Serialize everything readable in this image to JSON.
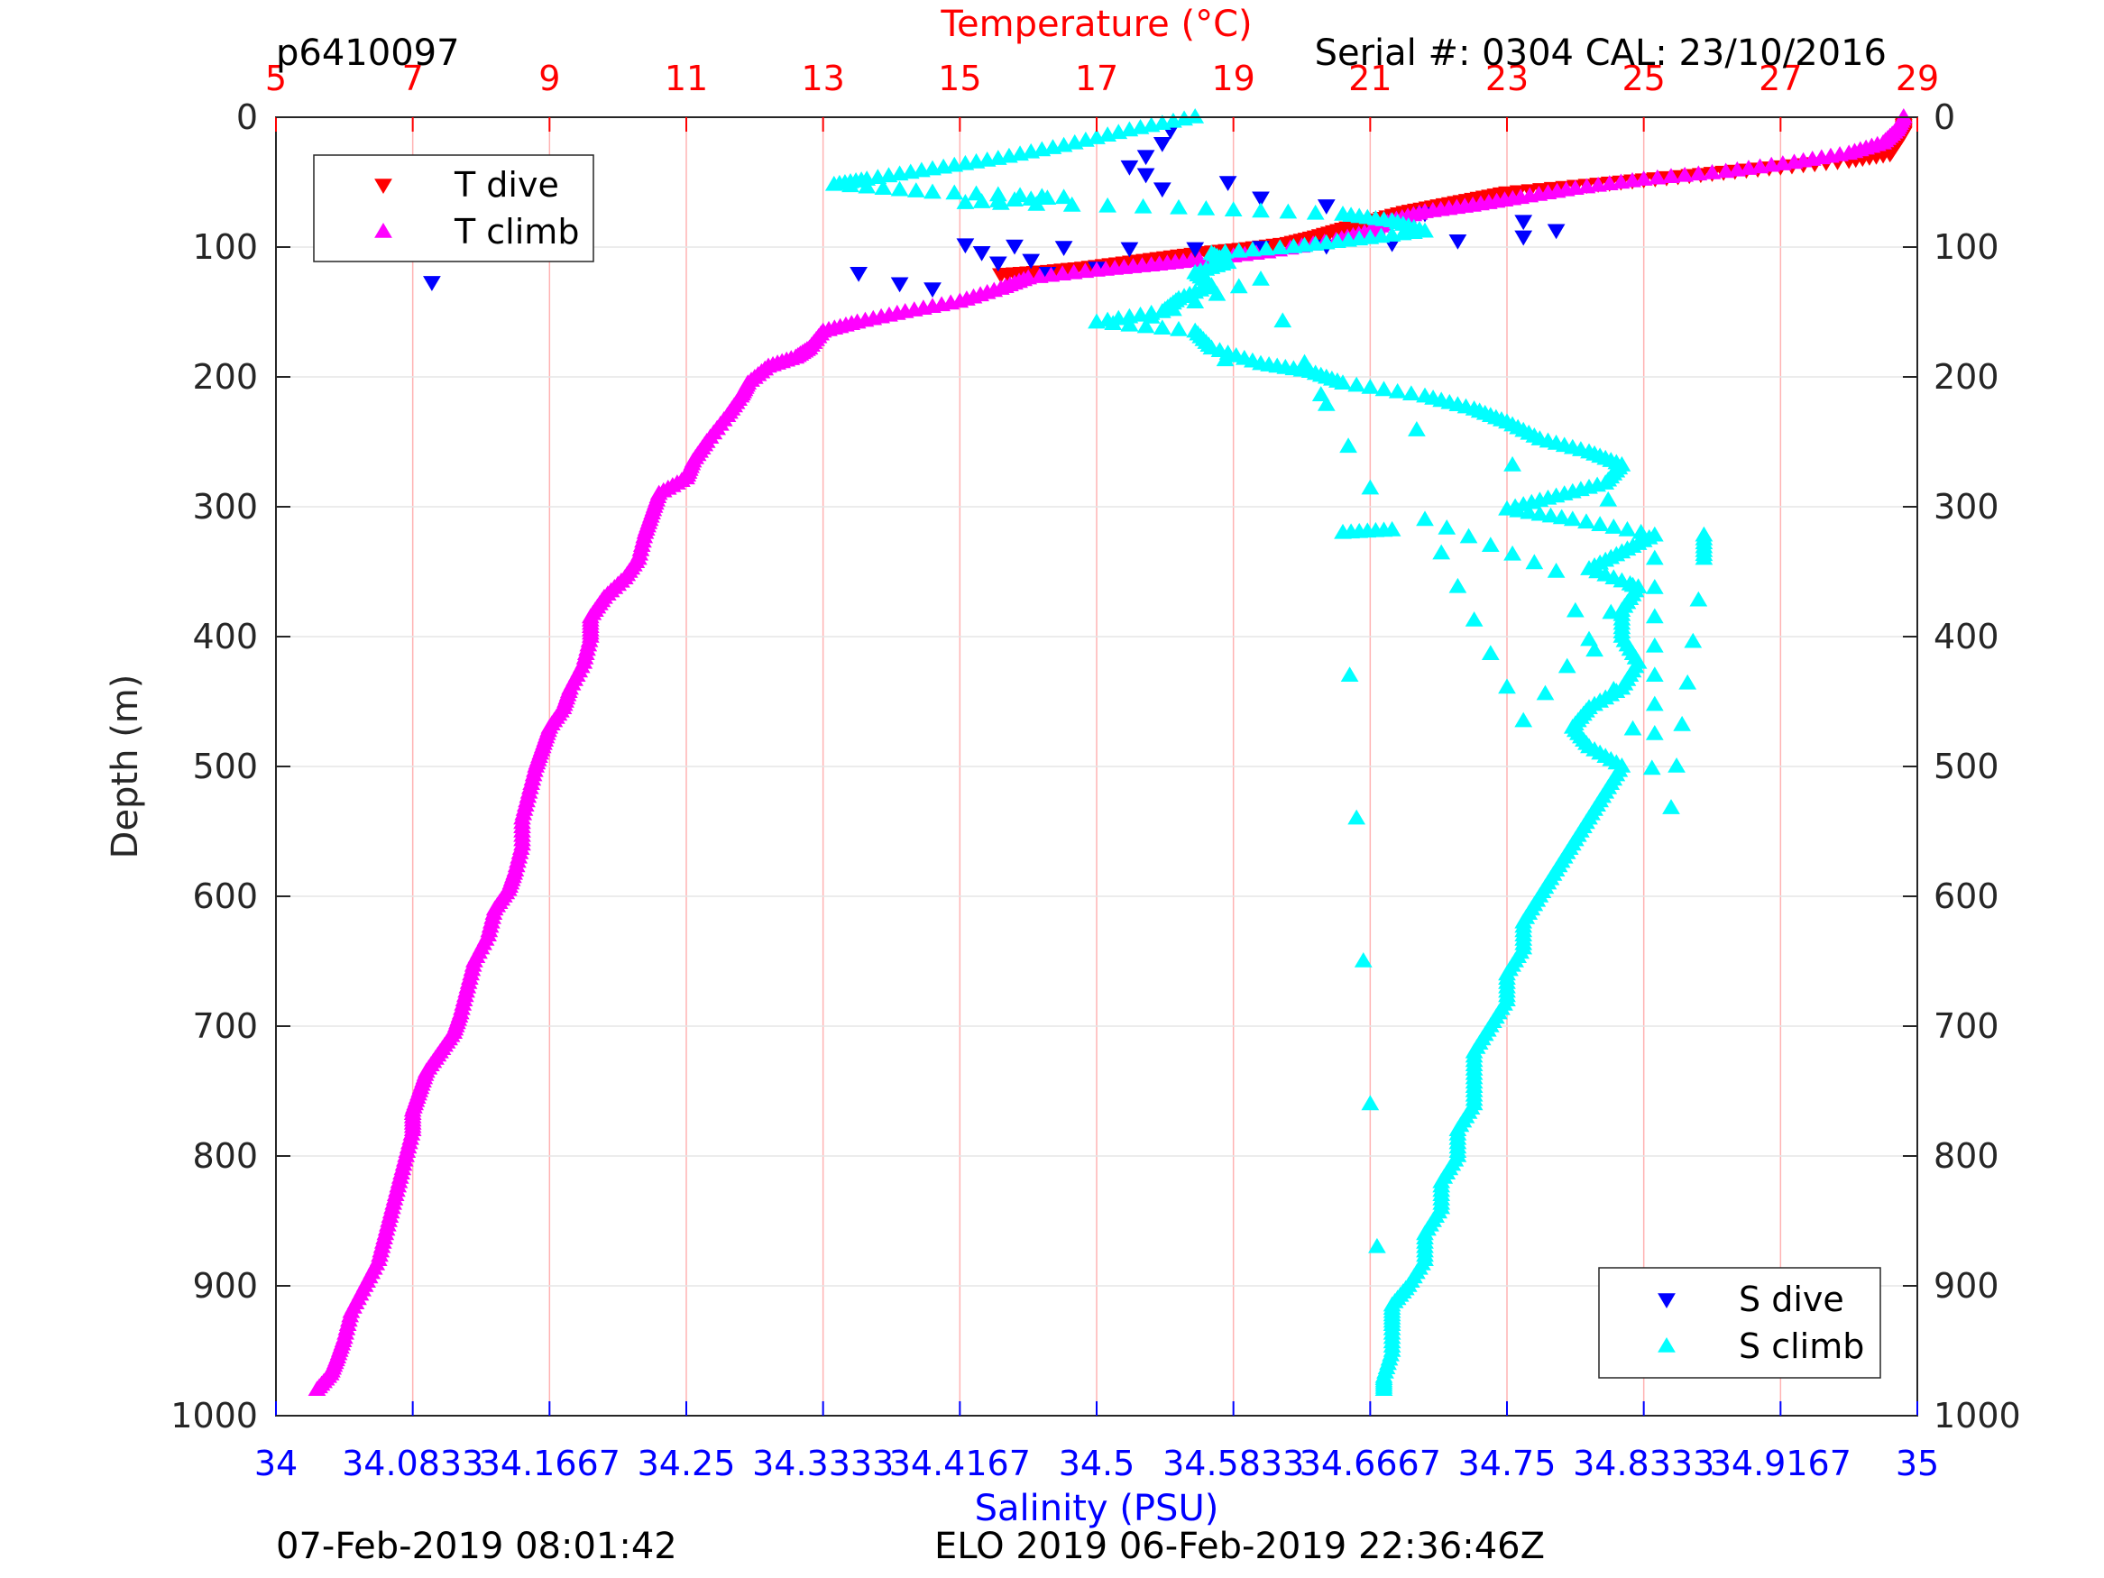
{
  "header": {
    "profile_id": "p6410097",
    "serial": "Serial #: 0304  CAL: 23/10/2016"
  },
  "footer": {
    "left": "07-Feb-2019 08:01:42",
    "center": "ELO 2019 06-Feb-2019 22:36:46Z"
  },
  "chart_data": {
    "type": "scatter",
    "title": "",
    "x_top_label": "Temperature (°C)",
    "x_bottom_label": "Salinity (PSU)",
    "ylabel": "Depth (m)",
    "temperature_range": [
      5,
      29
    ],
    "salinity_range": [
      34,
      35
    ],
    "depth_range": [
      0,
      1000
    ],
    "y_reversed": true,
    "grid": true,
    "temperature_ticks": [
      "5",
      "7",
      "9",
      "11",
      "13",
      "15",
      "17",
      "19",
      "21",
      "23",
      "25",
      "27",
      "29"
    ],
    "salinity_ticks": [
      "34",
      "34.0833",
      "34.1667",
      "34.25",
      "34.3333",
      "34.4167",
      "34.5",
      "34.5833",
      "34.6667",
      "34.75",
      "34.8333",
      "34.9167",
      "35"
    ],
    "depth_ticks": [
      "0",
      "100",
      "200",
      "300",
      "400",
      "500",
      "600",
      "700",
      "800",
      "900",
      "1000"
    ],
    "legend_temperature": {
      "placement": "top-left",
      "entries": [
        "T dive",
        "T climb"
      ]
    },
    "legend_salinity": {
      "placement": "bottom-right",
      "entries": [
        "S dive",
        "S climb"
      ]
    },
    "colors": {
      "t_dive": "#ff0000",
      "t_climb": "#ff00ff",
      "s_dive": "#0000ff",
      "s_climb": "#00ffff",
      "grid": "#ffb3b3",
      "axis": "#262626"
    },
    "series": [
      {
        "name": "T dive",
        "axis": "temperature",
        "marker": "triangle-down",
        "points": [
          [
            28.8,
            5
          ],
          [
            28.8,
            12
          ],
          [
            28.7,
            20
          ],
          [
            28.6,
            28
          ],
          [
            28.0,
            33
          ],
          [
            27.0,
            38
          ],
          [
            26.0,
            43
          ],
          [
            25.0,
            48
          ],
          [
            24.0,
            53
          ],
          [
            23.0,
            58
          ],
          [
            22.5,
            63
          ],
          [
            22.0,
            68
          ],
          [
            21.5,
            73
          ],
          [
            21.0,
            80
          ],
          [
            20.6,
            86
          ],
          [
            20.2,
            92
          ],
          [
            19.8,
            97
          ],
          [
            19.2,
            101
          ],
          [
            18.6,
            104
          ],
          [
            18.0,
            108
          ],
          [
            17.4,
            112
          ],
          [
            16.8,
            116
          ],
          [
            16.2,
            119
          ],
          [
            15.6,
            121
          ]
        ]
      },
      {
        "name": "T climb",
        "axis": "temperature",
        "marker": "triangle-up",
        "points": [
          [
            28.8,
            0
          ],
          [
            28.7,
            10
          ],
          [
            28.5,
            20
          ],
          [
            28.0,
            28
          ],
          [
            27.2,
            35
          ],
          [
            26.2,
            42
          ],
          [
            25.0,
            48
          ],
          [
            24.0,
            55
          ],
          [
            23.2,
            62
          ],
          [
            22.5,
            68
          ],
          [
            21.8,
            73
          ],
          [
            21.3,
            80
          ],
          [
            21.0,
            88
          ],
          [
            20.5,
            95
          ],
          [
            19.5,
            104
          ],
          [
            18.5,
            110
          ],
          [
            17.8,
            114
          ],
          [
            17.0,
            118
          ],
          [
            16.0,
            124
          ],
          [
            15.6,
            132
          ],
          [
            15.0,
            142
          ],
          [
            14.2,
            150
          ],
          [
            13.5,
            158
          ],
          [
            13.0,
            165
          ],
          [
            12.8,
            178
          ],
          [
            12.6,
            185
          ],
          [
            12.2,
            192
          ],
          [
            11.9,
            205
          ],
          [
            11.8,
            215
          ],
          [
            11.6,
            230
          ],
          [
            11.3,
            250
          ],
          [
            11.1,
            265
          ],
          [
            11.0,
            278
          ],
          [
            10.6,
            290
          ],
          [
            10.5,
            305
          ],
          [
            10.4,
            320
          ],
          [
            10.3,
            340
          ],
          [
            10.1,
            355
          ],
          [
            9.8,
            370
          ],
          [
            9.6,
            385
          ],
          [
            9.6,
            400
          ],
          [
            9.5,
            420
          ],
          [
            9.3,
            440
          ],
          [
            9.2,
            455
          ],
          [
            9.0,
            470
          ],
          [
            8.9,
            485
          ],
          [
            8.8,
            500
          ],
          [
            8.7,
            520
          ],
          [
            8.6,
            540
          ],
          [
            8.6,
            560
          ],
          [
            8.5,
            580
          ],
          [
            8.4,
            595
          ],
          [
            8.2,
            610
          ],
          [
            8.1,
            630
          ],
          [
            7.9,
            650
          ],
          [
            7.8,
            670
          ],
          [
            7.7,
            690
          ],
          [
            7.6,
            705
          ],
          [
            7.4,
            720
          ],
          [
            7.2,
            735
          ],
          [
            7.1,
            750
          ],
          [
            7.0,
            765
          ],
          [
            7.0,
            780
          ],
          [
            6.9,
            800
          ],
          [
            6.8,
            820
          ],
          [
            6.7,
            840
          ],
          [
            6.6,
            860
          ],
          [
            6.5,
            880
          ],
          [
            6.3,
            900
          ],
          [
            6.1,
            920
          ],
          [
            6.0,
            940
          ],
          [
            5.9,
            955
          ],
          [
            5.8,
            968
          ],
          [
            5.6,
            980
          ]
        ]
      },
      {
        "name": "S dive",
        "axis": "salinity",
        "marker": "triangle-down",
        "points": [
          [
            34.545,
            10
          ],
          [
            34.54,
            20
          ],
          [
            34.53,
            30
          ],
          [
            34.52,
            38
          ],
          [
            34.53,
            44
          ],
          [
            34.58,
            50
          ],
          [
            34.54,
            55
          ],
          [
            34.6,
            62
          ],
          [
            34.64,
            68
          ],
          [
            34.7,
            74
          ],
          [
            34.76,
            80
          ],
          [
            34.78,
            87
          ],
          [
            34.76,
            92
          ],
          [
            34.72,
            95
          ],
          [
            34.68,
            97
          ],
          [
            34.64,
            99
          ],
          [
            34.6,
            100
          ],
          [
            34.56,
            101
          ],
          [
            34.52,
            101
          ],
          [
            34.48,
            100
          ],
          [
            34.45,
            99
          ],
          [
            34.42,
            98
          ],
          [
            34.43,
            104
          ],
          [
            34.46,
            110
          ],
          [
            34.5,
            116
          ],
          [
            34.095,
            127
          ],
          [
            34.355,
            120
          ],
          [
            34.38,
            128
          ],
          [
            34.4,
            132
          ],
          [
            34.44,
            112
          ],
          [
            34.47,
            120
          ]
        ]
      },
      {
        "name": "S climb",
        "axis": "salinity",
        "marker": "triangle-up",
        "points": [
          [
            34.56,
            0
          ],
          [
            34.52,
            10
          ],
          [
            34.48,
            22
          ],
          [
            34.44,
            32
          ],
          [
            34.4,
            40
          ],
          [
            34.36,
            48
          ],
          [
            34.34,
            52
          ],
          [
            34.4,
            58
          ],
          [
            34.48,
            62
          ],
          [
            34.42,
            66
          ],
          [
            34.55,
            70
          ],
          [
            34.65,
            75
          ],
          [
            34.68,
            80
          ],
          [
            34.7,
            88
          ],
          [
            34.66,
            94
          ],
          [
            34.62,
            100
          ],
          [
            34.57,
            105
          ],
          [
            34.58,
            112
          ],
          [
            34.56,
            120
          ],
          [
            34.57,
            130
          ],
          [
            34.55,
            140
          ],
          [
            34.54,
            150
          ],
          [
            34.5,
            158
          ],
          [
            34.56,
            165
          ],
          [
            34.57,
            178
          ],
          [
            34.6,
            190
          ],
          [
            34.63,
            196
          ],
          [
            34.65,
            205
          ],
          [
            34.7,
            215
          ],
          [
            34.73,
            225
          ],
          [
            34.75,
            235
          ],
          [
            34.77,
            248
          ],
          [
            34.8,
            258
          ],
          [
            34.82,
            268
          ],
          [
            34.81,
            282
          ],
          [
            34.78,
            292
          ],
          [
            34.75,
            302
          ],
          [
            34.79,
            310
          ],
          [
            34.84,
            322
          ],
          [
            34.82,
            335
          ],
          [
            34.8,
            348
          ],
          [
            34.83,
            362
          ],
          [
            34.82,
            380
          ],
          [
            34.82,
            400
          ],
          [
            34.83,
            420
          ],
          [
            34.82,
            440
          ],
          [
            34.8,
            455
          ],
          [
            34.79,
            470
          ],
          [
            34.8,
            485
          ],
          [
            34.82,
            500
          ],
          [
            34.81,
            520
          ],
          [
            34.8,
            540
          ],
          [
            34.79,
            560
          ],
          [
            34.78,
            580
          ],
          [
            34.77,
            600
          ],
          [
            34.76,
            620
          ],
          [
            34.76,
            640
          ],
          [
            34.75,
            660
          ],
          [
            34.75,
            680
          ],
          [
            34.74,
            700
          ],
          [
            34.73,
            720
          ],
          [
            34.73,
            740
          ],
          [
            34.73,
            760
          ],
          [
            34.72,
            780
          ],
          [
            34.72,
            800
          ],
          [
            34.71,
            820
          ],
          [
            34.71,
            840
          ],
          [
            34.7,
            860
          ],
          [
            34.7,
            880
          ],
          [
            34.69,
            900
          ],
          [
            34.68,
            915
          ],
          [
            34.68,
            930
          ],
          [
            34.68,
            950
          ],
          [
            34.675,
            970
          ],
          [
            34.675,
            980
          ],
          [
            34.65,
            320
          ],
          [
            34.68,
            318
          ],
          [
            34.6,
            125
          ],
          [
            34.52,
            160
          ],
          [
            34.87,
            322
          ],
          [
            34.87,
            340
          ],
          [
            34.85,
            532
          ],
          [
            34.78,
            350
          ],
          [
            34.7,
            310
          ],
          [
            34.76,
            465
          ],
          [
            34.84,
            340
          ],
          [
            34.84,
            475
          ]
        ]
      }
    ]
  }
}
